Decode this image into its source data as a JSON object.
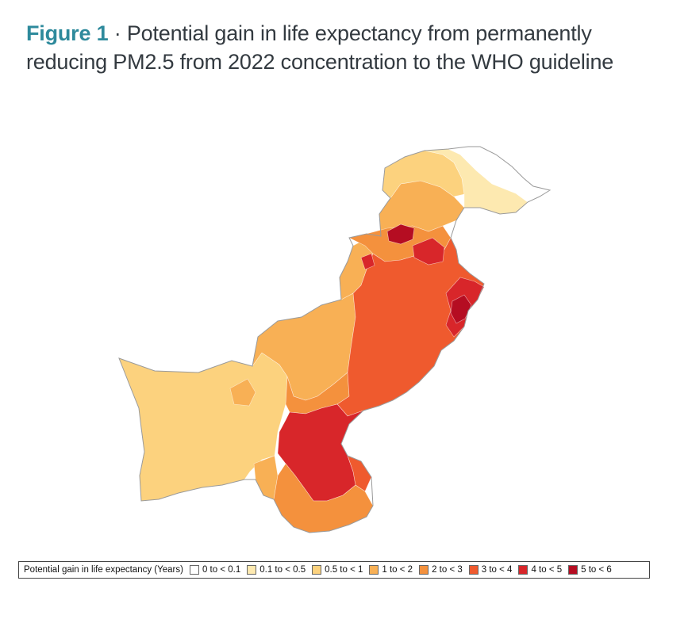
{
  "figure": {
    "label": "Figure 1",
    "separator": " · ",
    "title": "Potential gain in life expectancy from permanently reducing PM2.5 from 2022 concentration to the WHO guideline"
  },
  "map": {
    "region": "Pakistan",
    "border_color": "#9a9a9a"
  },
  "legend": {
    "title": "Potential gain in life expectancy (Years)",
    "items": [
      {
        "label": "0 to < 0.1",
        "color": "#ffffff"
      },
      {
        "label": "0.1 to < 0.5",
        "color": "#fde9b0"
      },
      {
        "label": "0.5 to < 1",
        "color": "#fcd27e"
      },
      {
        "label": "1 to < 2",
        "color": "#f8b055"
      },
      {
        "label": "2 to < 3",
        "color": "#f4913d"
      },
      {
        "label": "3 to < 4",
        "color": "#ef5a2e"
      },
      {
        "label": "4 to < 5",
        "color": "#d8262a"
      },
      {
        "label": "5 to < 6",
        "color": "#b50d22"
      }
    ]
  }
}
